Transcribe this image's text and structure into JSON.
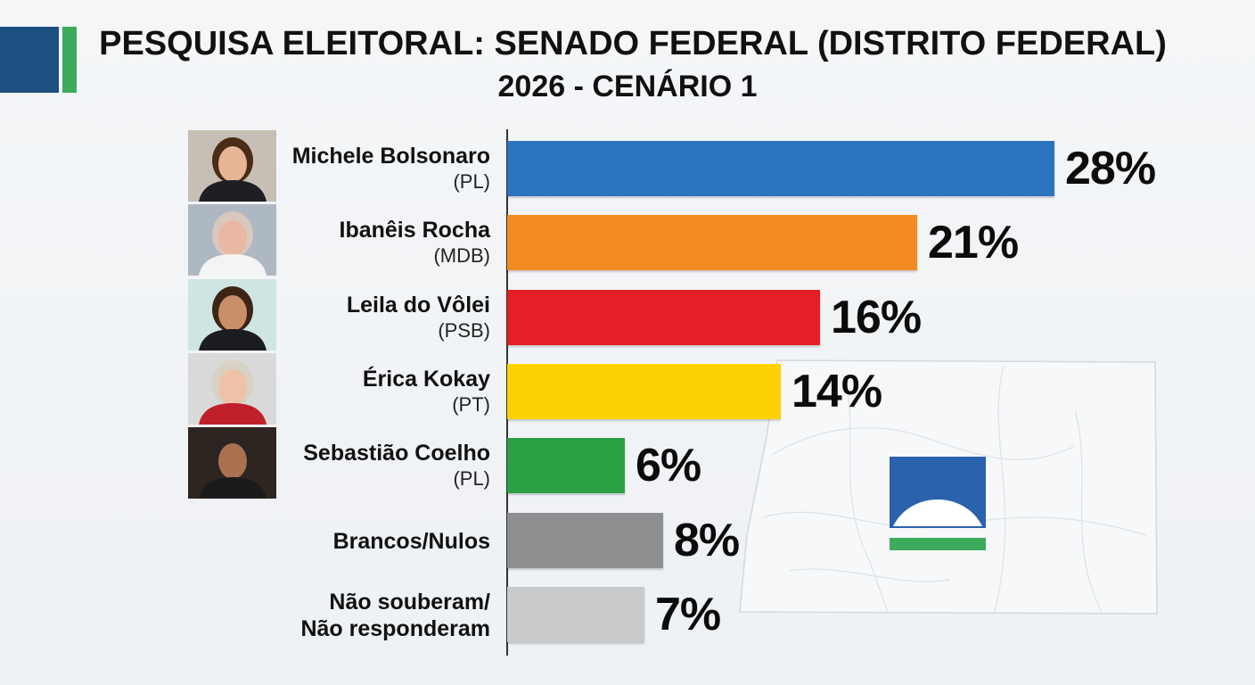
{
  "header": {
    "title_line1": "PESQUISA ELEITORAL: SENADO FEDERAL (DISTRITO FEDERAL)",
    "title_line2": "2026 - CENÁRIO 1"
  },
  "chart_data": {
    "type": "bar",
    "orientation": "horizontal",
    "title": "PESQUISA ELEITORAL: SENADO FEDERAL (DISTRITO FEDERAL)",
    "subtitle": "2026 - CENÁRIO 1",
    "xlim": [
      0,
      28
    ],
    "grid": false,
    "rows": [
      {
        "name": "Michele Bolsonaro",
        "party": "(PL)",
        "value": 28,
        "label": "28%",
        "color": "#2a73bd",
        "photo": true,
        "skin": "#e7b596",
        "hair": "#4a2c17",
        "bg": "#c7bfb6",
        "shirt": "#1e1e24"
      },
      {
        "name": "Ibanêis Rocha",
        "party": "(MDB)",
        "value": 21,
        "label": "21%",
        "color": "#f28c22",
        "photo": true,
        "skin": "#e8b8a3",
        "hair": "#d9c8bd",
        "bg": "#aeb8c2",
        "shirt": "#f4f4f4"
      },
      {
        "name": "Leila do Vôlei",
        "party": "(PSB)",
        "value": 16,
        "label": "16%",
        "color": "#e41f25",
        "photo": true,
        "skin": "#c98f68",
        "hair": "#3c2515",
        "bg": "#cfe5e4",
        "shirt": "#1b1b22"
      },
      {
        "name": "Érica Kokay",
        "party": "(PT)",
        "value": 14,
        "label": "14%",
        "color": "#fed102",
        "photo": true,
        "skin": "#efc1a6",
        "hair": "#d8d1c5",
        "bg": "#d9d9d9",
        "shirt": "#c0202a"
      },
      {
        "name": "Sebastião Coelho",
        "party": "(PL)",
        "value": 6,
        "label": "6%",
        "color": "#2ca044",
        "photo": true,
        "skin": "#a9714f",
        "hair": "#2a2522",
        "bg": "#2f2520",
        "shirt": "#1b1b1b"
      },
      {
        "name": "Brancos/Nulos",
        "party": "",
        "value": 8,
        "label": "8%",
        "color": "#8e8f91",
        "photo": false
      },
      {
        "name": "Não souberam/ Não responderam",
        "name_lines": [
          "Não souberam/",
          "Não responderam"
        ],
        "party": "",
        "value": 7,
        "label": "7%",
        "color": "#c9cacc",
        "photo": false
      }
    ]
  },
  "decor": {
    "logo_colors": [
      "#1d4f80",
      "#3cab5c"
    ],
    "map_icon": "distrito-federal-map-watermark",
    "flag_icon": "df-flag-emblem",
    "flag_colors": [
      "#2a62ad",
      "#ffffff",
      "#3cab5c"
    ]
  }
}
